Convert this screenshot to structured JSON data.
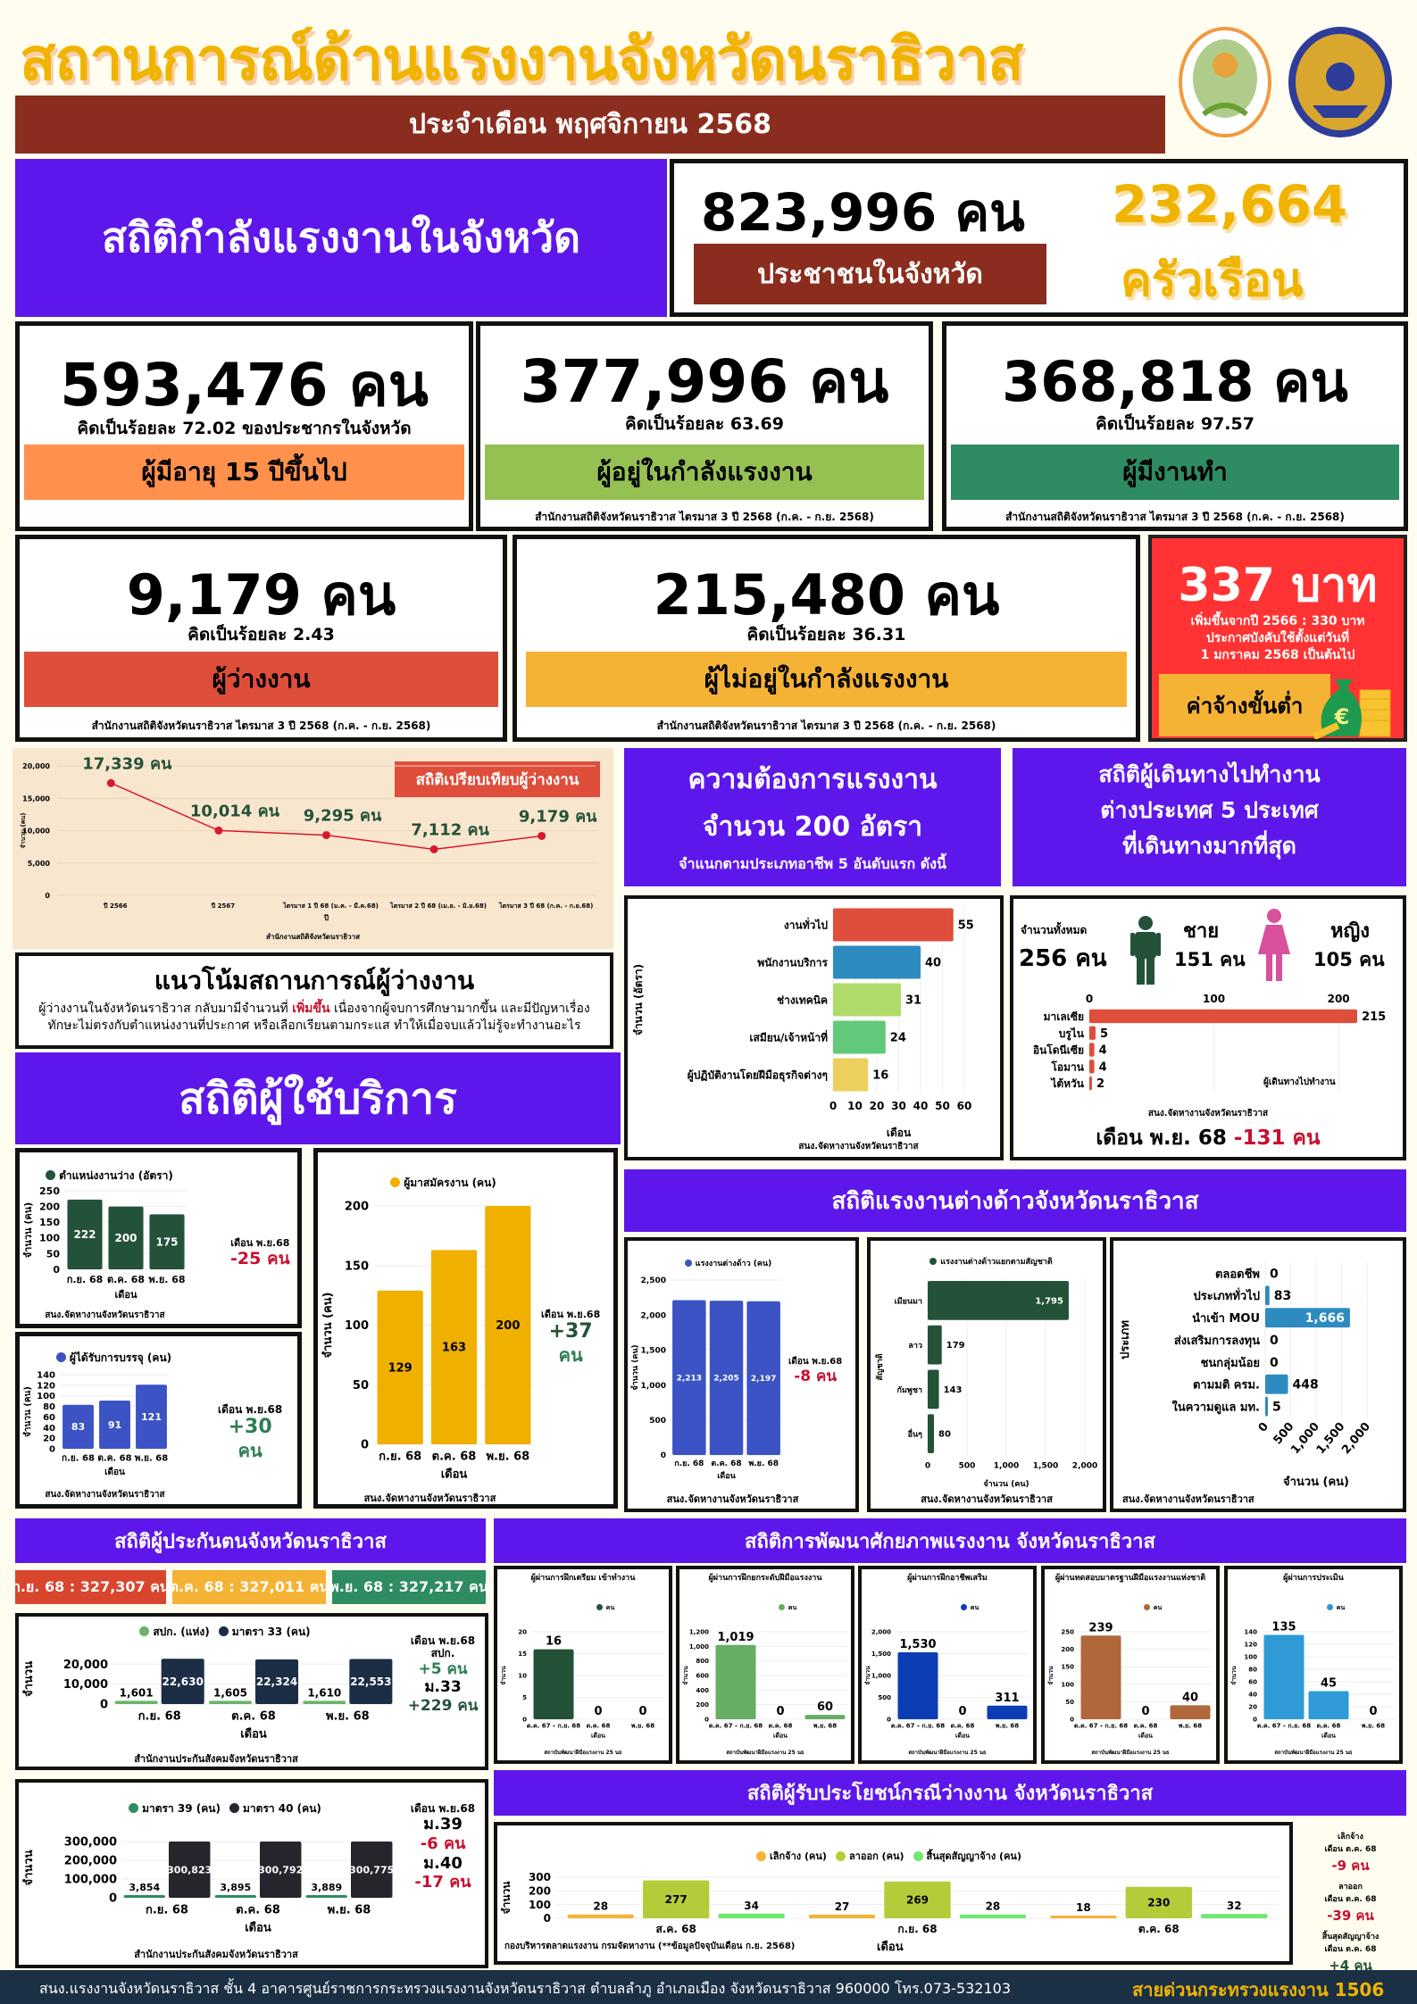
{
  "header": {
    "title": "สถานการณ์ด้านแรงงานจังหวัดนราธิวาส",
    "subtitle": "ประจำเดือน พฤศจิกายน 2568"
  },
  "population": {
    "section_title": "สถิติกำลังแรงงานในจังหวัด",
    "people_value": "823,996",
    "unit": "คน",
    "people_label": "ประชาชนในจังหวัด",
    "households_value": "232,664",
    "households_label": "ครัวเรือน"
  },
  "stats": [
    {
      "value": "593,476 คน",
      "pct": "คิดเป็นร้อยละ 72.02 ของประชากรในจังหวัด",
      "label": "ผู้มีอายุ 15 ปีขึ้นไป",
      "color": "#FF914D"
    },
    {
      "value": "377,996 คน",
      "pct": "คิดเป็นร้อยละ 63.69",
      "label": "ผู้อยู่ในกำลังแรงงาน",
      "source": "สำนักงานสถิติจังหวัดนราธิวาส ไตรมาส 3 ปี 2568 (ก.ค. - ก.ย. 2568)",
      "color": "#95C153"
    },
    {
      "value": "368,818 คน",
      "pct": "คิดเป็นร้อยละ 97.57",
      "label": "ผู้มีงานทำ",
      "source": "สำนักงานสถิติจังหวัดนราธิวาส ไตรมาส 3 ปี 2568 (ก.ค. - ก.ย. 2568)",
      "color": "#2E8B62"
    },
    {
      "value": "9,179 คน",
      "pct": "คิดเป็นร้อยละ 2.43",
      "label": "ผู้ว่างงาน",
      "source": "สำนักงานสถิติจังหวัดนราธิวาส ไตรมาส 3 ปี 2568 (ก.ค. - ก.ย. 2568)",
      "color": "#DE4E3A"
    },
    {
      "value": "215,480 คน",
      "pct": "คิดเป็นร้อยละ 36.31",
      "label": "ผู้ไม่อยู่ในกำลังแรงงาน",
      "source": "สำนักงานสถิติจังหวัดนราธิวาส ไตรมาส 3 ปี 2568 (ก.ค. - ก.ย. 2568)",
      "color": "#F5B335"
    }
  ],
  "min_wage": {
    "value": "337 บาท",
    "line1": "เพิ่มขึ้นจากปี 2566 : 330 บาท",
    "line2": "ประกาศบังคับใช้ตั้งแต่วันที่",
    "line3": "1 มกราคม 2568 เป็นต้นไป",
    "label": "ค่าจ้างขั้นต่ำ",
    "icon": "money-bag-icon"
  },
  "trend": {
    "title": "แนวโน้มสถานการณ์ผู้ว่างงาน",
    "text_before": "ผู้ว่างงานในจังหวัดนราธิวาส กลับมามีจำนวนที่ ",
    "highlight": "เพิ่มขึ้น",
    "text_after": " เนื่องจากผู้จบการศึกษามากขึ้น และมีปัญหาเรื่องทักษะไม่ตรงกับตำแหน่งงานที่ประกาศ หรือเลือกเรียนตามกระแส ทำให้เมื่อจบแล้วไม่รู้จะทำงานอะไร"
  },
  "services": {
    "section_title": "สถิติผู้ใช้บริการ",
    "source": "สนง.จัดหางานจังหวัดนราธิวาส",
    "vacancy_note": {
      "period": "เดือน พ.ย.68",
      "change": "-25 คน"
    },
    "placed_note": {
      "period": "เดือน พ.ย.68",
      "change": "+30",
      "unit": "คน"
    },
    "applicant_note": {
      "period": "เดือน พ.ย.68",
      "change": "+37",
      "unit": "คน"
    }
  },
  "demand": {
    "line1": "ความต้องการแรงงาน",
    "line2": "จำนวน 200 อัตรา",
    "line3": "จำแนกตามประเภทอาชีพ 5 อันดับแรก ดังนี้"
  },
  "travel": {
    "line1": "สถิติผู้เดินทางไปทำงาน",
    "line2": "ต่างประเทศ 5 ประเทศ",
    "line3": "ที่เดินทางมากที่สุด",
    "total_label": "จำนวนทั้งหมด",
    "total": "256 คน",
    "male_label": "ชาย",
    "male": "151 คน",
    "female_label": "หญิง",
    "female": "105 คน",
    "source": "สนง.จัดหางานจังหวัดนราธิวาส",
    "month": "เดือน พ.ย. 68",
    "change": "-131 คน"
  },
  "foreign": {
    "section_title": "สถิติแรงงานต่างด้าวจังหวัดนราธิวาส",
    "source1": "สนง.จัดหางานจังหวัดนราธิวาส",
    "source2": "สนง.จัดหางานจังหวัดนราธิวาส",
    "source3": "สนง.จัดหางานจังหวัดนราธิวาส",
    "note": {
      "period": "เดือน พ.ย.68",
      "change": "-8 คน"
    }
  },
  "insurance": {
    "section_title": "สถิติผู้ประกันตนจังหวัดนราธิวาส",
    "pills": [
      {
        "text": "ก.ย. 68 : 327,307 คน",
        "color": "#D9462E"
      },
      {
        "text": "ต.ค. 68 : 327,011 คน",
        "color": "#F5B335"
      },
      {
        "text": "พ.ย. 68 : 327,217 คน",
        "color": "#2E8B62"
      }
    ],
    "source": "สำนักงานประกันสังคมจังหวัดนราธิวาส",
    "note1": {
      "period": "เดือน พ.ย.68",
      "a_label": "สปก.",
      "a_change": "+5 คน",
      "b_label": "ม.33",
      "b_change": "+229 คน"
    },
    "note2": {
      "period": "เดือน พ.ย.68",
      "a_label": "ม.39",
      "a_change": "-6 คน",
      "b_label": "ม.40",
      "b_change": "-17 คน"
    }
  },
  "development": {
    "section_title": "สถิติการพัฒนาศักยภาพแรงงาน จังหวัดนราธิวาส",
    "legend": "คน",
    "source": "สถาบันพัฒนาฝีมือแรงงาน 25 นธ"
  },
  "benefits": {
    "section_title": "สถิติผู้รับประโยชน์กรณีว่างงาน จังหวัดนราธิวาส",
    "source": "กองบริหารตลาดแรงงาน กรมจัดหางาน (**ข้อมูลปัจจุบันเดือน ก.ย. 2568)",
    "notes": [
      {
        "label": "เลิกจ้าง",
        "period": "เดือน ต.ค. 68",
        "change": "-9 คน"
      },
      {
        "label": "ลาออก",
        "period": "เดือน ต.ค. 68",
        "change": "-39 คน"
      },
      {
        "label": "สิ้นสุดสัญญาจ้าง",
        "period": "เดือน ต.ค. 68",
        "change": "+4 คน"
      }
    ]
  },
  "footer": {
    "address": "สนง.แรงงานจังหวัดนราธิวาส ชั้น 4 อาคารศูนย์ราชการกระทรวงแรงงานจังหวัดนราธิวาส ตำบลลำภู อำเภอเมือง จังหวัดนราธิวาส 960000 โทร.073-532103",
    "hotline": "สายด่วนกระทรวงแรงงาน 1506"
  },
  "chart_data": [
    {
      "type": "line",
      "title": "สถิติเปรียบเทียบผู้ว่างงาน",
      "categories": [
        "ปี 2566",
        "ปี 2567",
        "ไตรมาส 1 ปี 68 (ม.ค. - มี.ค.68)",
        "ไตรมาส 2 ปี 68 (เม.ย. - มิ.ย.68)",
        "ไตรมาส 3 ปี 68 (ก.ค. - ก.ย.68)"
      ],
      "values": [
        17339,
        10014,
        9295,
        7112,
        9179
      ],
      "point_labels": [
        "17,339 คน",
        "10,014 คน",
        "9,295 คน",
        "7,112 คน",
        "9,179 คน"
      ],
      "ylim": [
        0,
        20000
      ],
      "yticks": [
        0,
        5000,
        10000,
        15000,
        20000
      ],
      "xlabel": "ปี",
      "ylabel": "จำนวน (คน)",
      "source": "สำนักงานสถิติจังหวัดนราธิวาส",
      "color": "#D7192D"
    },
    {
      "type": "bar",
      "orientation": "horizontal",
      "categories": [
        "งานทั่วไป",
        "พนักงานบริการ",
        "ช่างเทคนิค",
        "เสมียน/เจ้าหน้าที่",
        "ผู้ปฏิบัติงานโดยฝีมือธุรกิจต่างๆ"
      ],
      "values": [
        55,
        40,
        31,
        24,
        16
      ],
      "colors": [
        "#DE4E3A",
        "#2E8BC0",
        "#B1DB6A",
        "#62C97A",
        "#EDCF5E"
      ],
      "xlim": [
        0,
        60
      ],
      "xticks": [
        0,
        10,
        20,
        30,
        40,
        50,
        60
      ],
      "xlabel": "เดือน",
      "ylabel": "จำนวน (อัตรา)",
      "source": "สนง.จัดหางานจังหวัดนราธิวาส"
    },
    {
      "type": "bar",
      "orientation": "horizontal",
      "categories": [
        "มาเลเซีย",
        "บรูไน",
        "อินโดนีเซีย",
        "โอมาน",
        "ไต้หวัน"
      ],
      "values": [
        215,
        5,
        4,
        4,
        2
      ],
      "color": "#DE4E3A",
      "xlim": [
        0,
        230
      ],
      "xticks": [
        0,
        100,
        200
      ],
      "legend": "ผู้เดินทางไปทำงาน"
    },
    {
      "type": "bar",
      "legend": "ตำแหน่งงานว่าง (อัตรา)",
      "categories": [
        "ก.ย. 68",
        "ต.ค. 68",
        "พ.ย. 68"
      ],
      "series": [
        {
          "name": "ตำแหน่งงานว่าง (อัตรา)",
          "values": [
            222,
            200,
            175
          ],
          "color": "#245239"
        }
      ],
      "ylim": [
        0,
        250
      ],
      "yticks": [
        0,
        50,
        100,
        150,
        200,
        250
      ],
      "xlabel": "เดือน",
      "ylabel": "จำนวน (คน)"
    },
    {
      "type": "bar",
      "legend": "ผู้ได้รับการบรรจุ (คน)",
      "categories": [
        "ก.ย. 68",
        "ต.ค. 68",
        "พ.ย. 68"
      ],
      "series": [
        {
          "name": "ผู้ได้รับการบรรจุ (คน)",
          "values": [
            83,
            91,
            121
          ],
          "color": "#3B53C4"
        }
      ],
      "ylim": [
        0,
        140
      ],
      "yticks": [
        0,
        20,
        40,
        60,
        80,
        100,
        120,
        140
      ],
      "xlabel": "เดือน",
      "ylabel": "จำนวน (คน)"
    },
    {
      "type": "bar",
      "legend": "ผู้มาสมัครงาน (คน)",
      "categories": [
        "ก.ย. 68",
        "ต.ค. 68",
        "พ.ย. 68"
      ],
      "series": [
        {
          "name": "ผู้มาสมัครงาน (คน)",
          "values": [
            129,
            163,
            200
          ],
          "color": "#EFB000"
        }
      ],
      "ylim": [
        0,
        200
      ],
      "yticks": [
        0,
        50,
        100,
        150,
        200
      ],
      "xlabel": "เดือน",
      "ylabel": "จำนวน (คน)"
    },
    {
      "type": "bar",
      "legend": "แรงงานต่างด้าว (คน)",
      "categories": [
        "ก.ย. 68",
        "ต.ค. 68",
        "พ.ย. 68"
      ],
      "series": [
        {
          "name": "แรงงานต่างด้าว (คน)",
          "values": [
            2213,
            2205,
            2197
          ],
          "color": "#3B53C4"
        }
      ],
      "ylim": [
        0,
        2500
      ],
      "yticks": [
        0,
        500,
        1000,
        1500,
        2000,
        2500
      ],
      "xlabel": "เดือน",
      "ylabel": "จำนวน (คน)"
    },
    {
      "type": "bar",
      "orientation": "horizontal",
      "legend": "แรงงานต่างด้าวแยกตามสัญชาติ",
      "categories": [
        "เมียนมา",
        "ลาว",
        "กัมพูชา",
        "อื่นๆ"
      ],
      "values": [
        1795,
        179,
        143,
        80
      ],
      "color": "#245239",
      "xlim": [
        0,
        2000
      ],
      "xticks": [
        0,
        500,
        1000,
        1500,
        2000
      ],
      "xlabel": "จำนวน (คน)",
      "ylabel": "สัญชาติ"
    },
    {
      "type": "bar",
      "orientation": "horizontal",
      "categories": [
        "ตลอดชีพ",
        "ประเภททั่วไป",
        "นำเข้า MOU",
        "ส่งเสริมการลงทุน",
        "ชนกลุ่มน้อย",
        "ตามมติ ครม.",
        "ในความดูแล มท."
      ],
      "values": [
        0,
        83,
        1666,
        0,
        0,
        448,
        5
      ],
      "color": "#2E8BC0",
      "xlim": [
        0,
        2000
      ],
      "xticks": [
        0,
        500,
        1000,
        1500,
        2000
      ],
      "xlabel": "จำนวน (คน)",
      "ylabel": "ประเภท"
    },
    {
      "type": "bar",
      "categories": [
        "ก.ย. 68",
        "ต.ค. 68",
        "พ.ย. 68"
      ],
      "series": [
        {
          "name": "สปก. (แห่ง)",
          "values": [
            1601,
            1605,
            1610
          ],
          "color": "#6AB36A"
        },
        {
          "name": "มาตรา 33 (คน)",
          "values": [
            22630,
            22324,
            22553
          ],
          "color": "#1B2E45"
        }
      ],
      "ylim": [
        0,
        25000
      ],
      "yticks": [
        0,
        10000,
        20000
      ],
      "xlabel": "เดือน",
      "ylabel": "จำนวน"
    },
    {
      "type": "bar",
      "categories": [
        "ก.ย. 68",
        "ต.ค. 68",
        "พ.ย. 68"
      ],
      "series": [
        {
          "name": "มาตรา 39 (คน)",
          "values": [
            3854,
            3895,
            3889
          ],
          "color": "#2E8B62"
        },
        {
          "name": "มาตรา 40 (คน)",
          "values": [
            300823,
            300792,
            300775
          ],
          "color": "#25252D"
        }
      ],
      "ylim": [
        0,
        320000
      ],
      "yticks": [
        0,
        100000,
        200000,
        300000
      ],
      "xlabel": "เดือน",
      "ylabel": "จำนวน"
    },
    {
      "type": "bar",
      "title": "ผู้ผ่านการฝึกเตรียม เข้าทำงาน",
      "categories": [
        "ต.ค. 67 - ก.ย. 68",
        "ต.ค. 68",
        "พ.ย. 68"
      ],
      "series": [
        {
          "name": "คน",
          "values": [
            16,
            0,
            0
          ],
          "color": "#245239"
        }
      ],
      "ylim": [
        0,
        20
      ],
      "yticks": [
        0,
        5,
        10,
        15,
        20
      ],
      "xlabel": "เดือน",
      "ylabel": "จำนวน"
    },
    {
      "type": "bar",
      "title": "ผู้ผ่านการฝึกยกระดับฝีมือแรงงาน",
      "categories": [
        "ต.ค. 67 - ก.ย. 68",
        "ต.ค. 68",
        "พ.ย. 68"
      ],
      "series": [
        {
          "name": "คน",
          "values": [
            1019,
            0,
            60
          ],
          "color": "#66AE62"
        }
      ],
      "ylim": [
        0,
        1200
      ],
      "yticks": [
        0,
        200,
        400,
        600,
        800,
        1000,
        1200
      ],
      "xlabel": "เดือน",
      "ylabel": "จำนวน"
    },
    {
      "type": "bar",
      "title": "ผู้ผ่านการฝึกอาชีพเสริม",
      "categories": [
        "ต.ค. 67 - ก.ย. 68",
        "ต.ค. 68",
        "พ.ย. 68"
      ],
      "series": [
        {
          "name": "คน",
          "values": [
            1530,
            0,
            311
          ],
          "color": "#0D3DB5"
        }
      ],
      "ylim": [
        0,
        2000
      ],
      "yticks": [
        0,
        500,
        1000,
        1500,
        2000
      ],
      "xlabel": "เดือน",
      "ylabel": "จำนวน"
    },
    {
      "type": "bar",
      "title": "ผู้ผ่านทดสอบมาตรฐานฝีมือแรงงานแห่งชาติ",
      "categories": [
        "ต.ค. 67 - ก.ย. 68",
        "ต.ค. 68",
        "พ.ย. 68"
      ],
      "series": [
        {
          "name": "คน",
          "values": [
            239,
            0,
            40
          ],
          "color": "#B0673C"
        }
      ],
      "ylim": [
        0,
        250
      ],
      "yticks": [
        0,
        50,
        100,
        150,
        200,
        250
      ],
      "xlabel": "เดือน",
      "ylabel": "จำนวน"
    },
    {
      "type": "bar",
      "title": "ผู้ผ่านการประเมิน",
      "categories": [
        "ต.ค. 67 - ก.ย. 68",
        "ต.ค. 68",
        "พ.ย. 68"
      ],
      "series": [
        {
          "name": "คน",
          "values": [
            135,
            45,
            0
          ],
          "color": "#2E9BD6"
        }
      ],
      "ylim": [
        0,
        140
      ],
      "yticks": [
        0,
        20,
        40,
        60,
        80,
        100,
        120,
        140
      ],
      "xlabel": "เดือน",
      "ylabel": "จำนวน"
    },
    {
      "type": "bar",
      "categories": [
        "ส.ค. 68",
        "ก.ย. 68",
        "ต.ค. 68"
      ],
      "series": [
        {
          "name": "เลิกจ้าง (คน)",
          "values": [
            28,
            27,
            18
          ],
          "color": "#F5B335"
        },
        {
          "name": "ลาออก (คน)",
          "values": [
            277,
            269,
            230
          ],
          "color": "#B5CC3A"
        },
        {
          "name": "สิ้นสุดสัญญาจ้าง (คน)",
          "values": [
            34,
            28,
            32
          ],
          "color": "#6EE86E"
        }
      ],
      "ylim": [
        0,
        300
      ],
      "yticks": [
        0,
        100,
        200,
        300
      ],
      "xlabel": "เดือน",
      "ylabel": "จำนวน"
    }
  ]
}
